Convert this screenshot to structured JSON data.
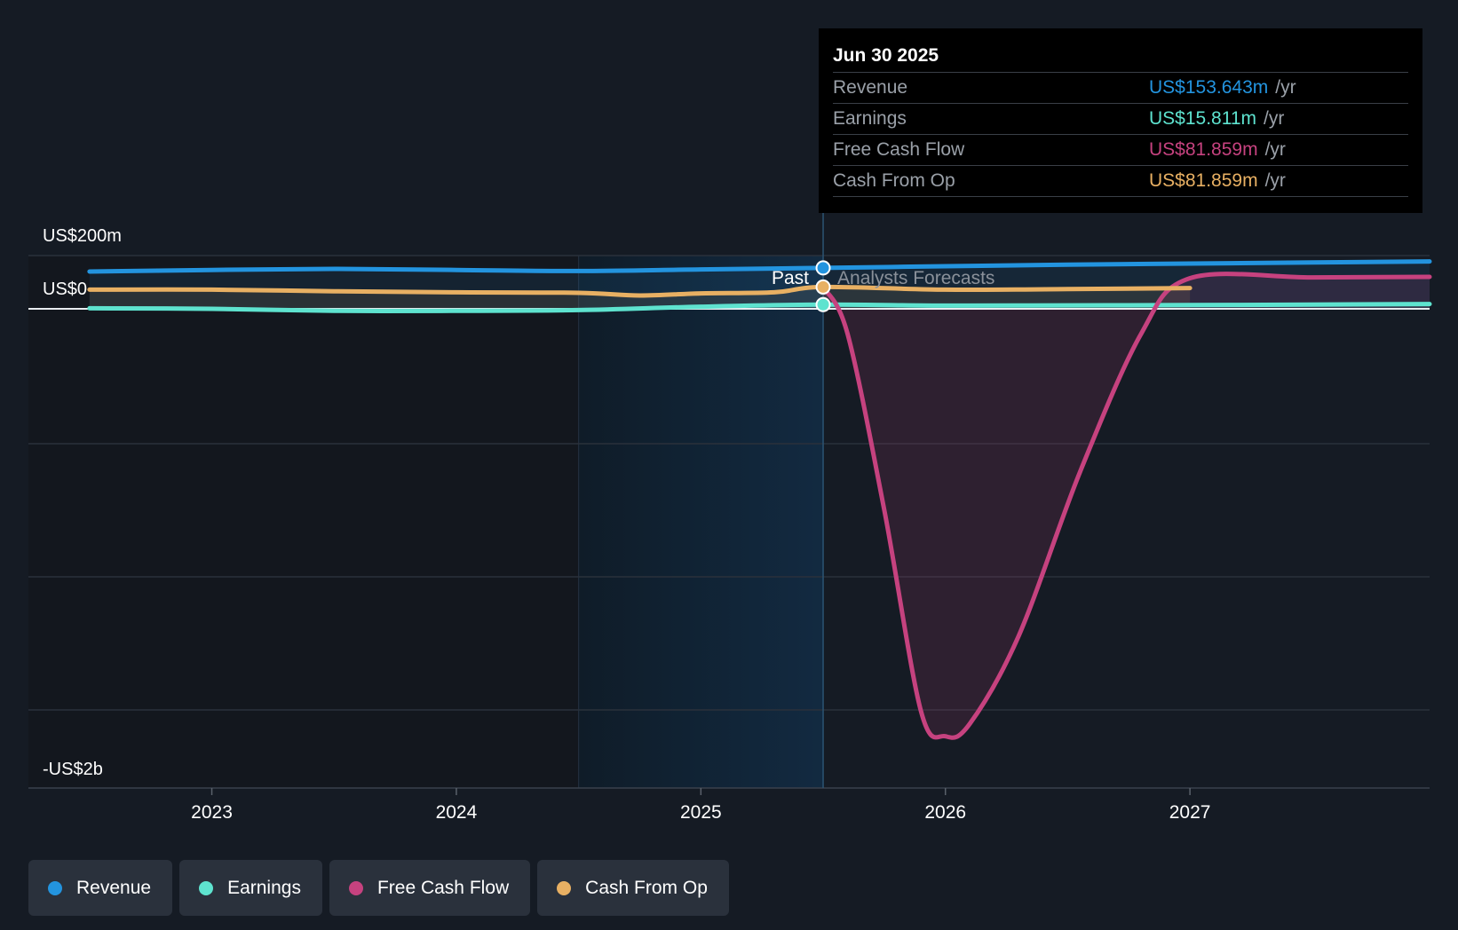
{
  "chart_data": {
    "type": "line",
    "x_unit": "year",
    "y_unit": "US$m",
    "yticks": [
      {
        "label": "US$200m",
        "value": 200
      },
      {
        "label": "US$0",
        "value": 0
      },
      {
        "label": "-US$2b",
        "value": -1800
      }
    ],
    "xticks": [
      {
        "label": "2023",
        "value": 2023
      },
      {
        "label": "2024",
        "value": 2024
      },
      {
        "label": "2025",
        "value": 2025
      },
      {
        "label": "2026",
        "value": 2026
      },
      {
        "label": "2027",
        "value": 2027
      }
    ],
    "xlim": [
      2022.25,
      2027.98
    ],
    "ylim": [
      -1820,
      200
    ],
    "divider_x": 2025.5,
    "shade_start_x": 2024.5,
    "past_label": "Past",
    "forecast_label": "Analysts Forecasts",
    "legend_placement": "bottom-left",
    "series": [
      {
        "name": "Revenue",
        "color": "#2394df",
        "points": [
          [
            2022.5,
            140
          ],
          [
            2023.0,
            146
          ],
          [
            2023.5,
            150
          ],
          [
            2024.0,
            146
          ],
          [
            2024.5,
            142
          ],
          [
            2025.0,
            148
          ],
          [
            2025.5,
            153.6
          ],
          [
            2026.0,
            160
          ],
          [
            2026.5,
            166
          ],
          [
            2027.0,
            170
          ],
          [
            2027.5,
            174
          ],
          [
            2027.98,
            178
          ]
        ]
      },
      {
        "name": "Earnings",
        "color": "#5ee3cf",
        "points": [
          [
            2022.5,
            2
          ],
          [
            2023.0,
            0
          ],
          [
            2023.5,
            -8
          ],
          [
            2024.0,
            -8
          ],
          [
            2024.5,
            -5
          ],
          [
            2025.0,
            8
          ],
          [
            2025.5,
            15.8
          ],
          [
            2026.0,
            12
          ],
          [
            2026.5,
            13
          ],
          [
            2027.0,
            14
          ],
          [
            2027.5,
            16
          ],
          [
            2027.98,
            18
          ]
        ]
      },
      {
        "name": "Free Cash Flow",
        "color": "#c6427f",
        "points": [
          [
            2025.5,
            81.9
          ],
          [
            2025.6,
            -100
          ],
          [
            2025.75,
            -800
          ],
          [
            2025.9,
            -1600
          ],
          [
            2026.0,
            -1700
          ],
          [
            2026.1,
            -1650
          ],
          [
            2026.3,
            -1300
          ],
          [
            2026.55,
            -650
          ],
          [
            2026.8,
            -100
          ],
          [
            2027.0,
            115
          ],
          [
            2027.5,
            118
          ],
          [
            2027.98,
            120
          ]
        ]
      },
      {
        "name": "Cash From Op",
        "color": "#e8b063",
        "points": [
          [
            2022.5,
            72
          ],
          [
            2023.0,
            72
          ],
          [
            2023.5,
            66
          ],
          [
            2024.0,
            62
          ],
          [
            2024.5,
            60
          ],
          [
            2024.75,
            50
          ],
          [
            2025.0,
            58
          ],
          [
            2025.3,
            62
          ],
          [
            2025.5,
            81.9
          ],
          [
            2026.0,
            72
          ],
          [
            2026.5,
            74
          ],
          [
            2027.0,
            78
          ]
        ]
      }
    ]
  },
  "tooltip": {
    "date": "Jun 30 2025",
    "rows": [
      {
        "label": "Revenue",
        "value": "US$153.643m",
        "unit": "/yr",
        "color": "#2394df"
      },
      {
        "label": "Earnings",
        "value": "US$15.811m",
        "unit": "/yr",
        "color": "#5ee3cf"
      },
      {
        "label": "Free Cash Flow",
        "value": "US$81.859m",
        "unit": "/yr",
        "color": "#c6427f"
      },
      {
        "label": "Cash From Op",
        "value": "US$81.859m",
        "unit": "/yr",
        "color": "#e8b063"
      }
    ]
  },
  "legend": [
    {
      "label": "Revenue",
      "color": "#2394df"
    },
    {
      "label": "Earnings",
      "color": "#5ee3cf"
    },
    {
      "label": "Free Cash Flow",
      "color": "#c6427f"
    },
    {
      "label": "Cash From Op",
      "color": "#e8b063"
    }
  ]
}
